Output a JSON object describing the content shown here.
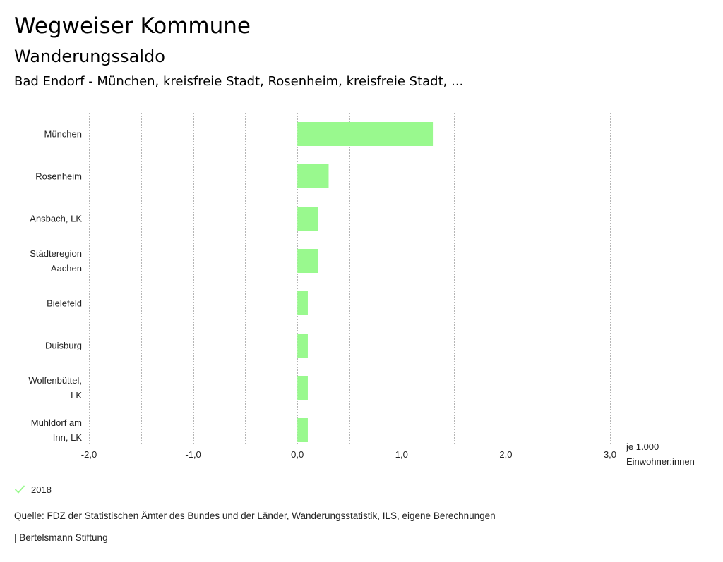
{
  "header": {
    "title": "Wegweiser Kommune",
    "subtitle": "Wanderungssaldo",
    "selection": "Bad Endorf - München, kreisfreie Stadt, Rosenheim, kreisfreie Stadt, ..."
  },
  "chart_data": {
    "type": "bar",
    "orientation": "horizontal",
    "categories": [
      [
        "München"
      ],
      [
        "Rosenheim"
      ],
      [
        "Ansbach, LK"
      ],
      [
        "Städteregion",
        "Aachen"
      ],
      [
        "Bielefeld"
      ],
      [
        "Duisburg"
      ],
      [
        "Wolfenbüttel,",
        "LK"
      ],
      [
        "Mühldorf am",
        "Inn, LK"
      ]
    ],
    "series": [
      {
        "name": "2018",
        "values": [
          1.3,
          0.3,
          0.2,
          0.2,
          0.1,
          0.1,
          0.1,
          0.1
        ]
      }
    ],
    "xlim": [
      -2.0,
      3.0
    ],
    "ticks": [
      -2.0,
      -1.0,
      0.0,
      1.0,
      2.0,
      3.0
    ],
    "tick_labels": [
      "-2,0",
      "-1,0",
      "0,0",
      "1,0",
      "2,0",
      "3,0"
    ],
    "unit_label": [
      "je 1.000",
      "Einwohner:innen"
    ],
    "grid": true,
    "legend_position": "bottom-left",
    "bar_color": "#99f98e"
  },
  "legend": {
    "label": "2018",
    "icon": "check-icon",
    "color": "#99f98e"
  },
  "footer": {
    "source": "Quelle: FDZ der Statistischen Ämter des Bundes und der Länder, Wanderungsstatistik, ILS, eigene Berechnungen",
    "credits": "| Bertelsmann Stiftung"
  }
}
